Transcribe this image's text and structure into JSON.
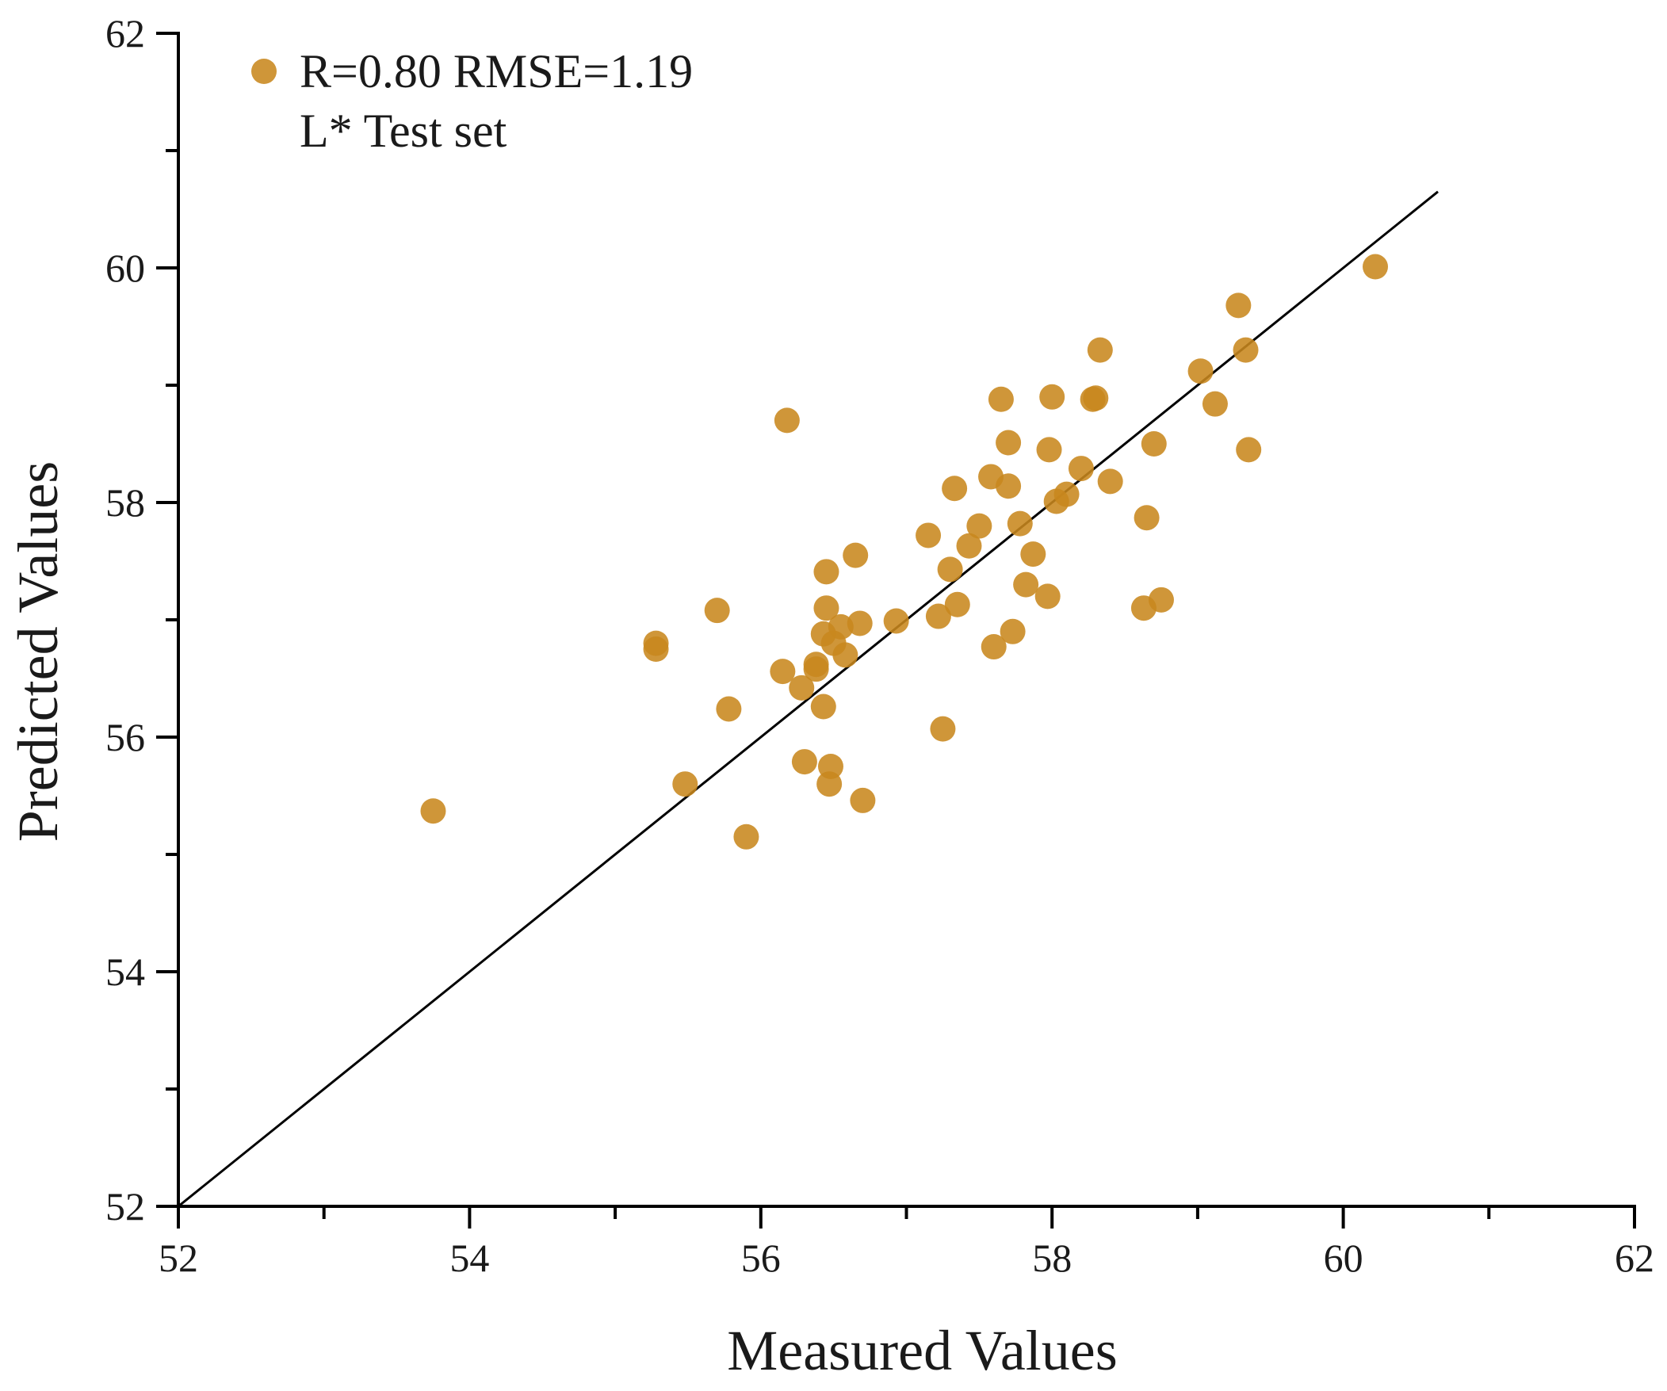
{
  "chart_data": {
    "type": "scatter",
    "title": "",
    "xlabel": "Measured Values",
    "ylabel": "Predicted Values",
    "xlim": [
      52,
      62
    ],
    "ylim": [
      52,
      62
    ],
    "xticks": [
      "52",
      "54",
      "56",
      "58",
      "60",
      "62"
    ],
    "yticks": [
      "52",
      "54",
      "56",
      "58",
      "60",
      "62"
    ],
    "grid": false,
    "legend": {
      "position": "top-left",
      "lines": [
        "R=0.80 RMSE=1.19",
        "L* Test set"
      ]
    },
    "reference_line": {
      "from": [
        52,
        52
      ],
      "to": [
        60.65,
        60.65
      ]
    },
    "colors": {
      "marker": "#c8871e",
      "axis": "#000000"
    },
    "series": [
      {
        "name": "L* Test set",
        "points": [
          [
            53.75,
            55.37
          ],
          [
            55.28,
            56.8
          ],
          [
            55.28,
            56.75
          ],
          [
            55.48,
            55.6
          ],
          [
            55.7,
            57.08
          ],
          [
            55.78,
            56.24
          ],
          [
            55.9,
            55.15
          ],
          [
            56.15,
            56.56
          ],
          [
            56.18,
            58.7
          ],
          [
            56.28,
            56.42
          ],
          [
            56.3,
            55.79
          ],
          [
            56.38,
            56.62
          ],
          [
            56.38,
            56.58
          ],
          [
            56.43,
            56.88
          ],
          [
            56.43,
            56.26
          ],
          [
            56.45,
            57.41
          ],
          [
            56.45,
            57.1
          ],
          [
            56.47,
            55.6
          ],
          [
            56.48,
            55.75
          ],
          [
            56.5,
            56.8
          ],
          [
            56.55,
            56.94
          ],
          [
            56.58,
            56.7
          ],
          [
            56.65,
            57.55
          ],
          [
            56.68,
            56.97
          ],
          [
            56.7,
            55.46
          ],
          [
            56.93,
            56.99
          ],
          [
            57.15,
            57.72
          ],
          [
            57.22,
            57.03
          ],
          [
            57.25,
            56.07
          ],
          [
            57.3,
            57.43
          ],
          [
            57.33,
            58.12
          ],
          [
            57.35,
            57.13
          ],
          [
            57.43,
            57.63
          ],
          [
            57.5,
            57.8
          ],
          [
            57.58,
            58.22
          ],
          [
            57.6,
            56.77
          ],
          [
            57.65,
            58.88
          ],
          [
            57.7,
            58.51
          ],
          [
            57.7,
            58.14
          ],
          [
            57.73,
            56.9
          ],
          [
            57.78,
            57.82
          ],
          [
            57.82,
            57.3
          ],
          [
            57.87,
            57.56
          ],
          [
            57.97,
            57.2
          ],
          [
            57.98,
            58.45
          ],
          [
            58.0,
            58.9
          ],
          [
            58.03,
            58.01
          ],
          [
            58.1,
            58.07
          ],
          [
            58.2,
            58.29
          ],
          [
            58.28,
            58.88
          ],
          [
            58.3,
            58.89
          ],
          [
            58.33,
            59.3
          ],
          [
            58.4,
            58.18
          ],
          [
            58.63,
            57.1
          ],
          [
            58.65,
            57.87
          ],
          [
            58.7,
            58.5
          ],
          [
            58.75,
            57.17
          ],
          [
            59.02,
            59.12
          ],
          [
            59.12,
            58.84
          ],
          [
            59.28,
            59.68
          ],
          [
            59.33,
            59.3
          ],
          [
            59.35,
            58.45
          ],
          [
            60.22,
            60.01
          ]
        ]
      }
    ]
  }
}
